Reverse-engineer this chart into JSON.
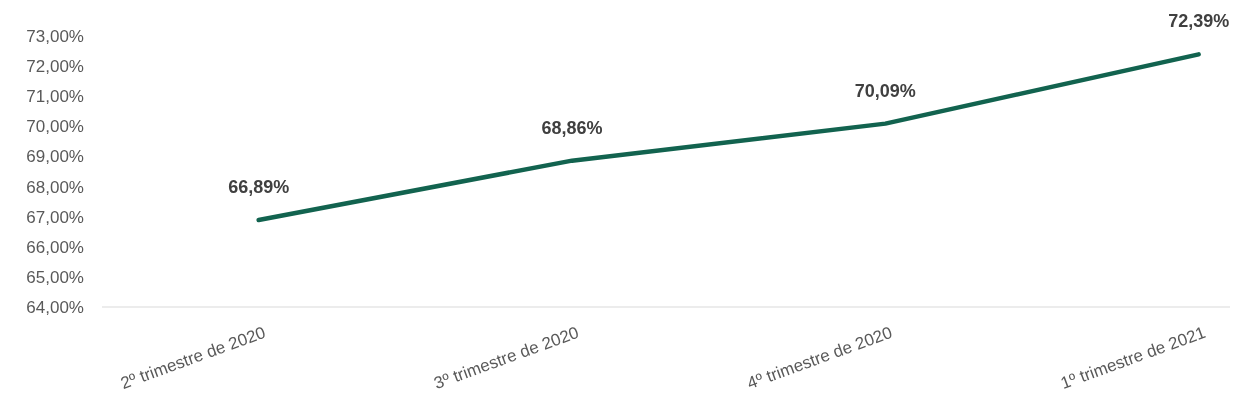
{
  "chart_data": {
    "type": "line",
    "categories": [
      "2º trimestre de 2020",
      "3º trimestre de 2020",
      "4º trimestre de 2020",
      "1º trimestre de 2021"
    ],
    "series": [
      {
        "color": "#12634f",
        "values": [
          66.89,
          68.86,
          70.09,
          72.39
        ],
        "value_labels": [
          "66,89%",
          "68,86%",
          "70,09%",
          "72,39%"
        ]
      }
    ],
    "ylim": [
      64,
      73
    ],
    "yticks": [
      {
        "value": 64,
        "label": "64,00%"
      },
      {
        "value": 65,
        "label": "65,00%"
      },
      {
        "value": 66,
        "label": "66,00%"
      },
      {
        "value": 67,
        "label": "67,00%"
      },
      {
        "value": 68,
        "label": "68,00%"
      },
      {
        "value": 69,
        "label": "69,00%"
      },
      {
        "value": 70,
        "label": "70,00%"
      },
      {
        "value": 71,
        "label": "71,00%"
      },
      {
        "value": 72,
        "label": "72,00%"
      },
      {
        "value": 73,
        "label": "73,00%"
      }
    ],
    "grid": false,
    "marker": "none",
    "line_style": "solid"
  }
}
